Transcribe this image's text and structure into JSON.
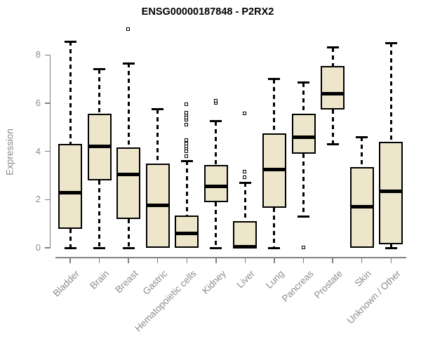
{
  "chart_data": {
    "type": "boxplot",
    "title": "ENSG00000187848 - P2RX2",
    "ylabel": "Expression",
    "xlabel": "",
    "ylim": [
      -0.3,
      9.3
    ],
    "yticks": [
      0,
      2,
      4,
      6,
      8
    ],
    "grid": false,
    "legend": "none",
    "box_fill_color": "#EDE6CA",
    "box_line_color": "#000000",
    "axis_line_color": "#7F7F7F",
    "axis_label_color": "#8C8C8C",
    "categories": [
      "Bladder",
      "Brain",
      "Breast",
      "Gastric",
      "Hematopoietic cells",
      "Kidney",
      "Liver",
      "Lung",
      "Pancreas",
      "Prostate",
      "Skin",
      "Unknown / Other"
    ],
    "series": [
      {
        "name": "Bladder",
        "whisker_low": 0.0,
        "q1": 0.8,
        "median": 2.3,
        "q3": 4.3,
        "whisker_high": 8.55,
        "outliers": []
      },
      {
        "name": "Brain",
        "whisker_low": 0.0,
        "q1": 2.8,
        "median": 4.2,
        "q3": 5.55,
        "whisker_high": 7.4,
        "outliers": []
      },
      {
        "name": "Breast",
        "whisker_low": 0.0,
        "q1": 1.2,
        "median": 3.05,
        "q3": 4.15,
        "whisker_high": 7.65,
        "outliers": [
          9.05
        ]
      },
      {
        "name": "Gastric",
        "whisker_low": 0.0,
        "q1": 0.0,
        "median": 1.75,
        "q3": 3.5,
        "whisker_high": 5.75,
        "outliers": []
      },
      {
        "name": "Hematopoietic cells",
        "whisker_low": 0.0,
        "q1": 0.0,
        "median": 0.6,
        "q3": 1.35,
        "whisker_high": 3.6,
        "outliers": [
          3.8,
          4.0,
          4.1,
          4.2,
          4.3,
          4.45,
          5.1,
          5.3,
          5.4,
          5.5,
          5.6,
          5.95
        ]
      },
      {
        "name": "Kidney",
        "whisker_low": 0.0,
        "q1": 1.9,
        "median": 2.55,
        "q3": 3.45,
        "whisker_high": 5.25,
        "outliers": [
          6.0,
          6.1
        ]
      },
      {
        "name": "Liver",
        "whisker_low": 0.0,
        "q1": 0.0,
        "median": 0.05,
        "q3": 1.1,
        "whisker_high": 2.7,
        "outliers": [
          2.9,
          3.15,
          5.55
        ]
      },
      {
        "name": "Lung",
        "whisker_low": 0.0,
        "q1": 1.65,
        "median": 3.25,
        "q3": 4.75,
        "whisker_high": 7.0,
        "outliers": []
      },
      {
        "name": "Pancreas",
        "whisker_low": 1.3,
        "q1": 3.9,
        "median": 4.6,
        "q3": 5.55,
        "whisker_high": 6.85,
        "outliers": [
          0.0
        ]
      },
      {
        "name": "Prostate",
        "whisker_low": 4.3,
        "q1": 5.75,
        "median": 6.4,
        "q3": 7.55,
        "whisker_high": 8.3,
        "outliers": []
      },
      {
        "name": "Skin",
        "whisker_low": 0.0,
        "q1": 0.0,
        "median": 1.7,
        "q3": 3.35,
        "whisker_high": 4.6,
        "outliers": []
      },
      {
        "name": "Unknown / Other",
        "whisker_low": 0.0,
        "q1": 0.15,
        "median": 2.35,
        "q3": 4.4,
        "whisker_high": 8.5,
        "outliers": []
      }
    ]
  }
}
